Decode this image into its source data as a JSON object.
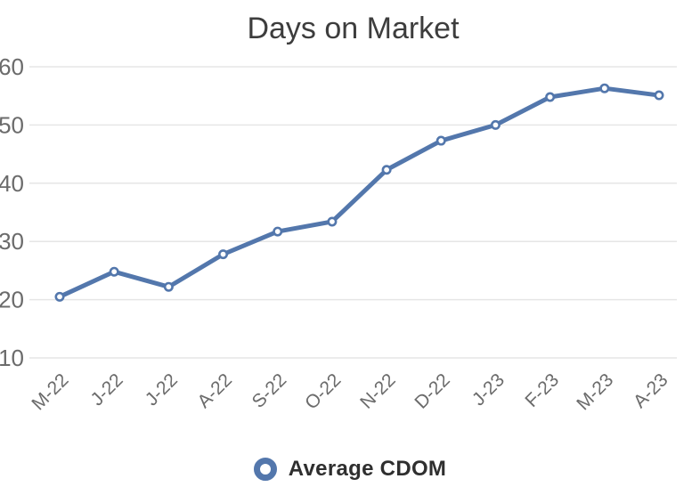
{
  "chart_data": {
    "type": "line",
    "title": "Days on Market",
    "categories": [
      "M-22",
      "J-22",
      "J-22",
      "A-22",
      "S-22",
      "O-22",
      "N-22",
      "D-22",
      "J-23",
      "F-23",
      "M-23",
      "A-23"
    ],
    "series": [
      {
        "name": "Average CDOM",
        "values": [
          20.5,
          24.8,
          22.2,
          27.8,
          31.7,
          33.4,
          42.3,
          47.3,
          50.0,
          54.8,
          56.3,
          55.1
        ]
      }
    ],
    "xlabel": "",
    "ylabel": "",
    "ylim": [
      10,
      60
    ],
    "y_ticks": [
      60,
      50,
      40,
      30,
      20,
      10
    ],
    "x_tick_rotation_deg": -45,
    "grid": "horizontal-only",
    "legend_position": "bottom",
    "marker_style": "open-circle",
    "colors": {
      "line": "#5377ac",
      "grid": "#e6e6e6",
      "axis_text": "#6b6b6b",
      "title": "#3d3d3d",
      "legend_text": "#2f2f2f",
      "background": "#ffffff"
    }
  }
}
